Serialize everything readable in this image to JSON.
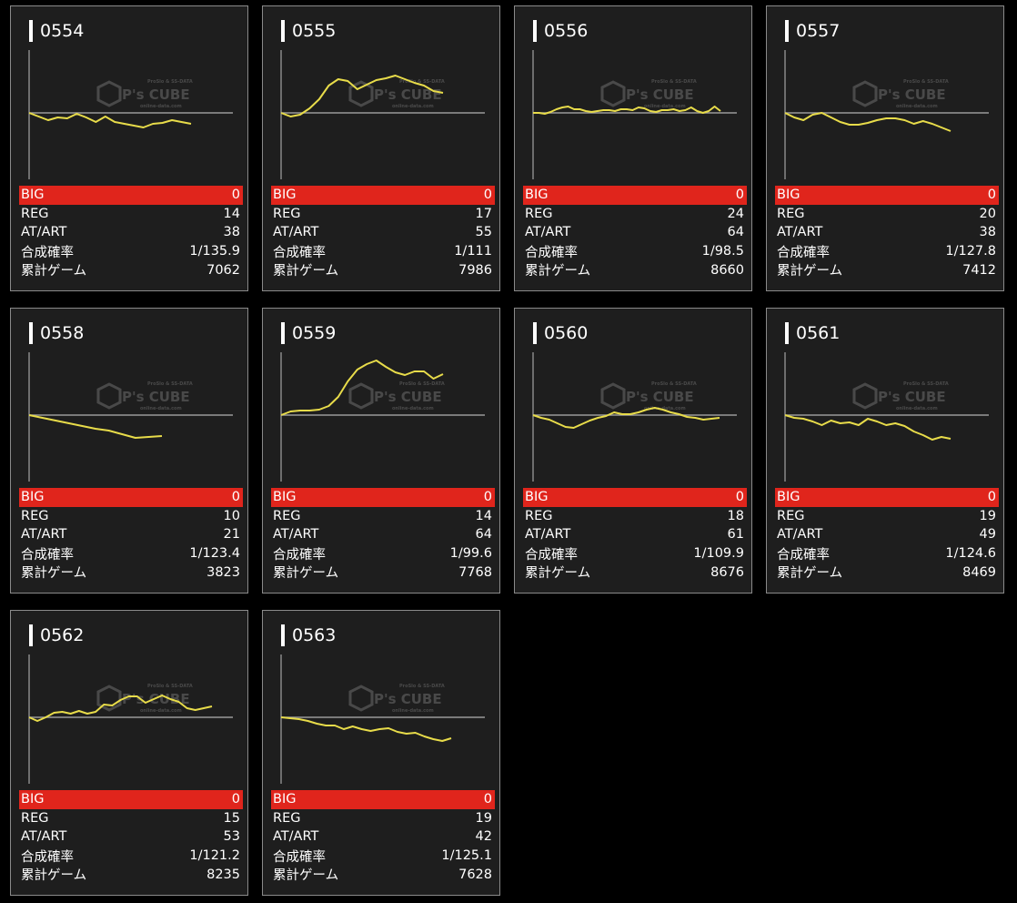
{
  "labels": {
    "big": "BIG",
    "reg": "REG",
    "at": "AT/ART",
    "prob": "合成確率",
    "games": "累計ゲーム"
  },
  "watermark": {
    "brand": "P's CUBE",
    "tag1": "ProSlo & SS-DATA",
    "tag2": "online-data.com"
  },
  "colors": {
    "line": "#e8dc4a",
    "big_row": "#e0251c",
    "card_bg": "#1e1e1e",
    "card_border": "#8a8a8a"
  },
  "cards": [
    {
      "id": "0554",
      "big": "0",
      "reg": "14",
      "at": "38",
      "prob": "1/135.9",
      "games": "7062"
    },
    {
      "id": "0555",
      "big": "0",
      "reg": "17",
      "at": "55",
      "prob": "1/111",
      "games": "7986"
    },
    {
      "id": "0556",
      "big": "0",
      "reg": "24",
      "at": "64",
      "prob": "1/98.5",
      "games": "8660"
    },
    {
      "id": "0557",
      "big": "0",
      "reg": "20",
      "at": "38",
      "prob": "1/127.8",
      "games": "7412"
    },
    {
      "id": "0558",
      "big": "0",
      "reg": "10",
      "at": "21",
      "prob": "1/123.4",
      "games": "3823"
    },
    {
      "id": "0559",
      "big": "0",
      "reg": "14",
      "at": "64",
      "prob": "1/99.6",
      "games": "7768"
    },
    {
      "id": "0560",
      "big": "0",
      "reg": "18",
      "at": "61",
      "prob": "1/109.9",
      "games": "8676"
    },
    {
      "id": "0561",
      "big": "0",
      "reg": "19",
      "at": "49",
      "prob": "1/124.6",
      "games": "8469"
    },
    {
      "id": "0562",
      "big": "0",
      "reg": "15",
      "at": "53",
      "prob": "1/121.2",
      "games": "8235"
    },
    {
      "id": "0563",
      "big": "0",
      "reg": "19",
      "at": "42",
      "prob": "1/125.1",
      "games": "7628"
    }
  ]
}
